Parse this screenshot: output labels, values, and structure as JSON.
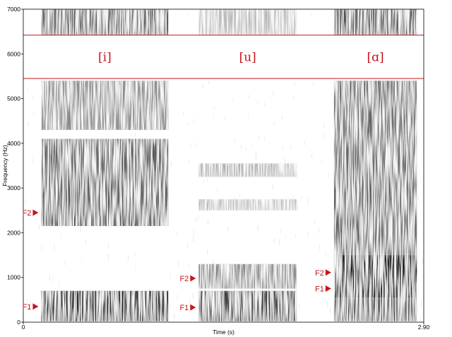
{
  "chart_data": {
    "type": "heatmap",
    "subtype": "spectrogram",
    "xlabel": "Time (s)",
    "ylabel": "Frequency (Hz)",
    "xlim": [
      0,
      2.9
    ],
    "ylim": [
      0,
      7000
    ],
    "x_tick_labels": [
      "0",
      "2.90"
    ],
    "y_ticks": [
      0,
      1000,
      2000,
      3000,
      4000,
      5000,
      6000,
      7000
    ],
    "colormap": "grayscale",
    "accent_color": "#c4151c",
    "label_band_hz": [
      5450,
      6420
    ],
    "vowels": [
      {
        "label": "[i]",
        "start_s": 0.13,
        "end_s": 1.05,
        "bands": [
          {
            "low": 20,
            "high": 700,
            "darkness": 0.85
          },
          {
            "low": 2150,
            "high": 4100,
            "darkness": 0.65
          },
          {
            "low": 4300,
            "high": 5400,
            "darkness": 0.45
          },
          {
            "low": 6420,
            "high": 7000,
            "darkness": 0.6
          }
        ],
        "formants": [
          {
            "name": "F1",
            "hz": 350
          },
          {
            "name": "F2",
            "hz": 2450
          }
        ]
      },
      {
        "label": "[u]",
        "start_s": 1.27,
        "end_s": 1.98,
        "bands": [
          {
            "low": 20,
            "high": 700,
            "darkness": 0.8
          },
          {
            "low": 750,
            "high": 1300,
            "darkness": 0.45
          },
          {
            "low": 2500,
            "high": 2750,
            "darkness": 0.22
          },
          {
            "low": 3250,
            "high": 3550,
            "darkness": 0.3
          },
          {
            "low": 6420,
            "high": 7000,
            "darkness": 0.25
          }
        ],
        "formants": [
          {
            "name": "F1",
            "hz": 330
          },
          {
            "name": "F2",
            "hz": 980
          }
        ]
      },
      {
        "label": "[ɑ]",
        "start_s": 2.25,
        "end_s": 2.85,
        "bands": [
          {
            "low": 20,
            "high": 550,
            "darkness": 0.65
          },
          {
            "low": 550,
            "high": 1500,
            "darkness": 0.95
          },
          {
            "low": 1500,
            "high": 5400,
            "darkness": 0.6
          },
          {
            "low": 6420,
            "high": 7000,
            "darkness": 0.65
          }
        ],
        "formants": [
          {
            "name": "F1",
            "hz": 750
          },
          {
            "name": "F2",
            "hz": 1110
          }
        ]
      }
    ]
  }
}
